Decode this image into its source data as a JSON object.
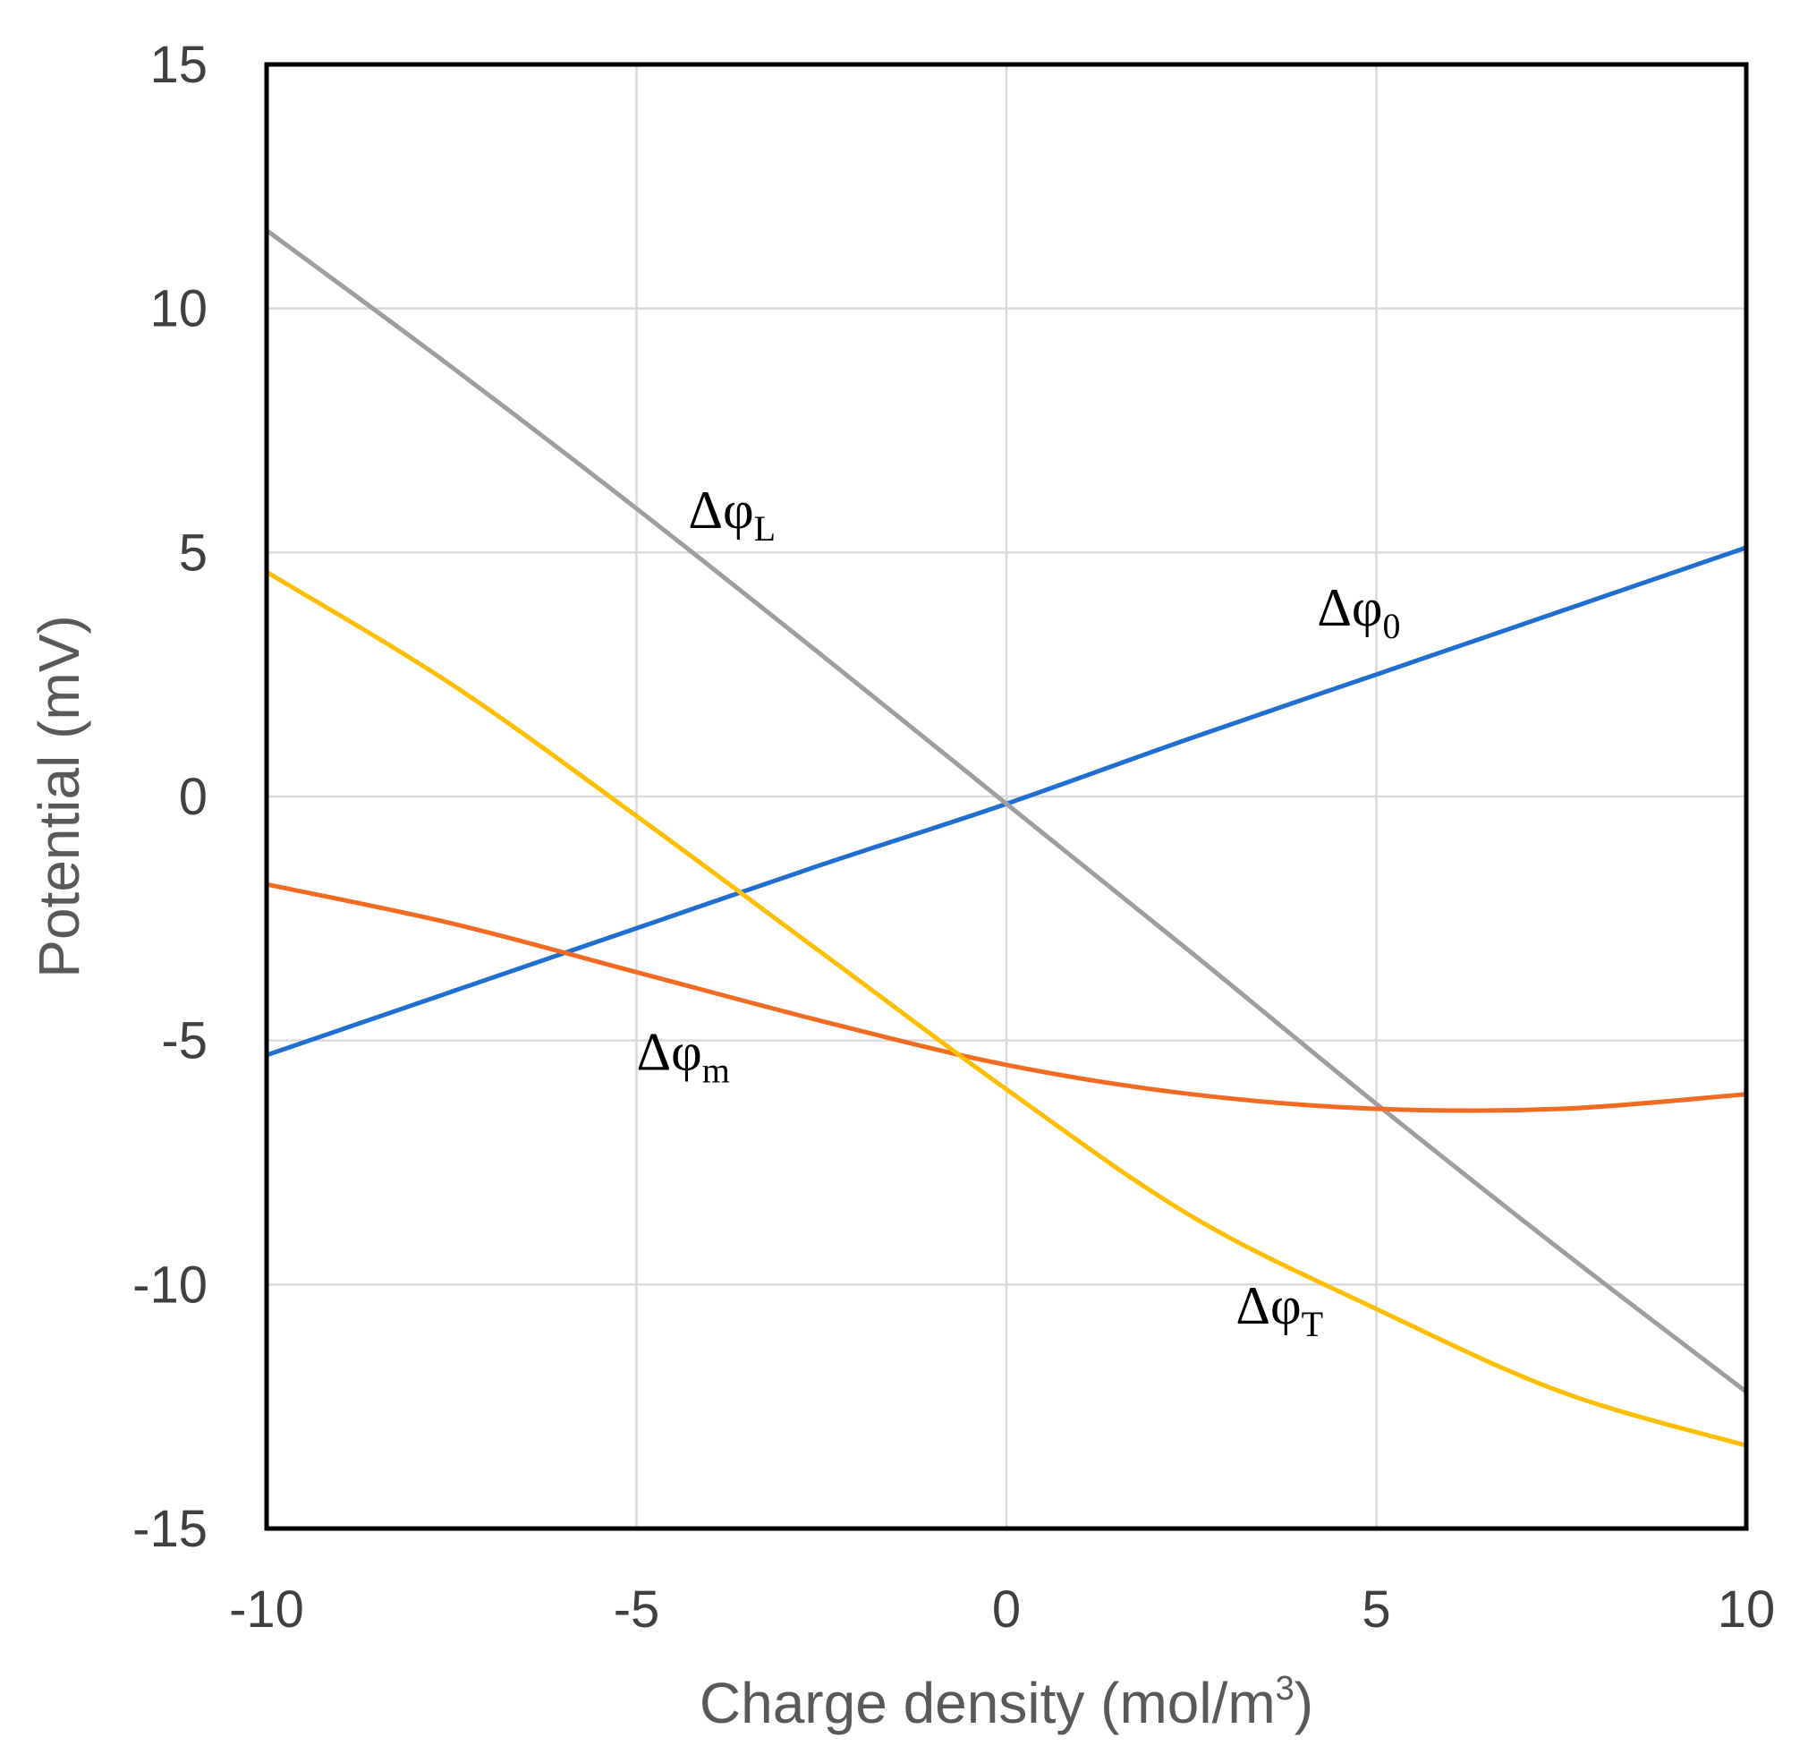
{
  "chart_data": {
    "type": "line",
    "title": "",
    "xlabel": "Charge density (mol/m",
    "xlabel_sup": "3",
    "xlabel_end": ")",
    "ylabel": "Potential (mV)",
    "xlim": [
      -10,
      10
    ],
    "ylim": [
      -15,
      15
    ],
    "grid": true,
    "x_ticks": [
      -10,
      -5,
      0,
      5,
      10
    ],
    "y_ticks": [
      15,
      10,
      5,
      0,
      -5,
      -10,
      -15
    ],
    "x_tick_labels": [
      "-10",
      "-5",
      "0",
      "5",
      "10"
    ],
    "y_tick_labels": [
      "15",
      "10",
      "5",
      "0",
      "-5",
      "-10",
      "-15"
    ],
    "x": [
      -10,
      -7.5,
      -5,
      -2.5,
      0,
      2.5,
      5,
      7.5,
      10
    ],
    "series": [
      {
        "name": "Δφ0",
        "label_main": "Δφ",
        "label_sub": "0",
        "label_at": [
          4.2,
          3.5
        ],
        "color": "#1f6fd1",
        "values": [
          -5.3,
          -4.0,
          -2.7,
          -1.4,
          -0.15,
          1.2,
          2.5,
          3.8,
          5.1
        ]
      },
      {
        "name": "ΔφL",
        "label_main": "Δφ",
        "label_sub": "L",
        "label_at": [
          -4.3,
          5.5
        ],
        "color": "#9e9e9e",
        "values": [
          11.6,
          8.8,
          5.9,
          2.9,
          -0.15,
          -3.2,
          -6.3,
          -9.3,
          -12.2
        ]
      },
      {
        "name": "Δφm",
        "label_main": "Δφ",
        "label_sub": "m",
        "label_at": [
          -5.0,
          -5.6
        ],
        "color": "#f26b21",
        "values": [
          -1.8,
          -2.6,
          -3.6,
          -4.6,
          -5.5,
          -6.1,
          -6.4,
          -6.4,
          -6.1
        ]
      },
      {
        "name": "ΔφT",
        "label_main": "Δφ",
        "label_sub": "T",
        "label_at": [
          3.1,
          -10.8
        ],
        "color": "#ffbf00",
        "values": [
          4.6,
          2.3,
          -0.4,
          -3.2,
          -6.0,
          -8.6,
          -10.5,
          -12.2,
          -13.3
        ]
      }
    ]
  }
}
